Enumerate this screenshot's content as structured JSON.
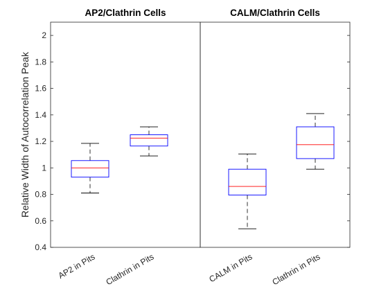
{
  "chart_data": {
    "type": "box",
    "ylabel": "Relative Width of Autocorrelation Peak",
    "ylim": [
      0.4,
      2.1
    ],
    "yticks": [
      0.4,
      0.6,
      0.8,
      1,
      1.2,
      1.4,
      1.6,
      1.8,
      2
    ],
    "grid": false,
    "panels": [
      {
        "title": "AP2/Clathrin Cells"
      },
      {
        "title": "CALM/Clathrin Cells"
      }
    ],
    "categories": [
      "AP2 in Pits",
      "Clathrin in Pits",
      "CALM in Pits",
      "Clathrin in Pits"
    ],
    "boxes": [
      {
        "label": "AP2 in Pits",
        "panel": 0,
        "whisker_low": 0.81,
        "q1": 0.93,
        "median": 1.0,
        "q3": 1.055,
        "whisker_high": 1.185
      },
      {
        "label": "Clathrin in Pits",
        "panel": 0,
        "whisker_low": 1.09,
        "q1": 1.165,
        "median": 1.225,
        "q3": 1.25,
        "whisker_high": 1.31
      },
      {
        "label": "CALM in Pits",
        "panel": 1,
        "whisker_low": 0.54,
        "q1": 0.795,
        "median": 0.86,
        "q3": 0.99,
        "whisker_high": 1.105
      },
      {
        "label": "Clathrin in Pits",
        "panel": 1,
        "whisker_low": 0.99,
        "q1": 1.07,
        "median": 1.175,
        "q3": 1.31,
        "whisker_high": 1.41
      }
    ],
    "colors": {
      "box": "#0000ff",
      "median": "#ff0000",
      "whisker": "#000000",
      "axis": "#262626"
    }
  }
}
